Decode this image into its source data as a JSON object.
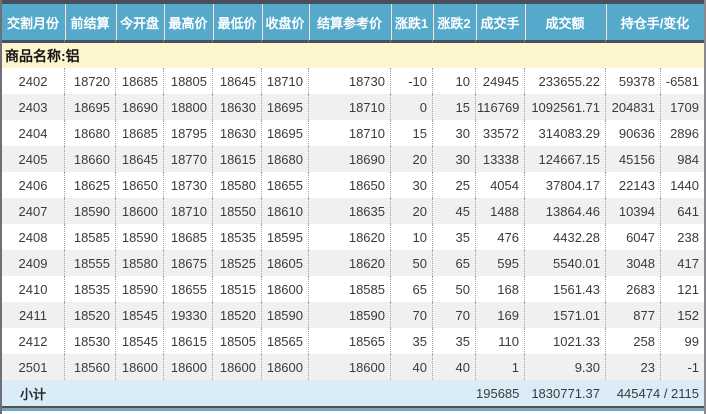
{
  "table": {
    "columns": [
      "交割月份",
      "前结算",
      "今开盘",
      "最高价",
      "最低价",
      "收盘价",
      "结算参考价",
      "涨跌1",
      "涨跌2",
      "成交手",
      "成交额",
      "持仓手/变化"
    ],
    "product_row_label": "商品名称:铝",
    "rows": [
      [
        "2402",
        "18720",
        "18685",
        "18805",
        "18645",
        "18710",
        "18730",
        "-10",
        "10",
        "24945",
        "233655.22",
        "59378",
        "-6581"
      ],
      [
        "2403",
        "18695",
        "18690",
        "18800",
        "18630",
        "18695",
        "18710",
        "0",
        "15",
        "116769",
        "1092561.71",
        "204831",
        "1709"
      ],
      [
        "2404",
        "18680",
        "18685",
        "18795",
        "18630",
        "18695",
        "18710",
        "15",
        "30",
        "33572",
        "314083.29",
        "90636",
        "2896"
      ],
      [
        "2405",
        "18660",
        "18645",
        "18770",
        "18615",
        "18680",
        "18690",
        "20",
        "30",
        "13338",
        "124667.15",
        "45156",
        "984"
      ],
      [
        "2406",
        "18625",
        "18650",
        "18730",
        "18580",
        "18655",
        "18650",
        "30",
        "25",
        "4054",
        "37804.17",
        "22143",
        "1440"
      ],
      [
        "2407",
        "18590",
        "18600",
        "18710",
        "18550",
        "18610",
        "18635",
        "20",
        "45",
        "1488",
        "13864.46",
        "10394",
        "641"
      ],
      [
        "2408",
        "18585",
        "18590",
        "18685",
        "18535",
        "18595",
        "18620",
        "10",
        "35",
        "476",
        "4432.28",
        "6047",
        "238"
      ],
      [
        "2409",
        "18555",
        "18580",
        "18675",
        "18525",
        "18605",
        "18620",
        "50",
        "65",
        "595",
        "5540.01",
        "3048",
        "417"
      ],
      [
        "2410",
        "18535",
        "18590",
        "18655",
        "18515",
        "18600",
        "18585",
        "65",
        "50",
        "168",
        "1561.43",
        "2683",
        "121"
      ],
      [
        "2411",
        "18520",
        "18545",
        "19330",
        "18520",
        "18590",
        "18590",
        "70",
        "70",
        "169",
        "1571.01",
        "877",
        "152"
      ],
      [
        "2412",
        "18530",
        "18545",
        "18615",
        "18505",
        "18565",
        "18565",
        "35",
        "35",
        "110",
        "1021.33",
        "258",
        "99"
      ],
      [
        "2501",
        "18560",
        "18600",
        "18600",
        "18600",
        "18600",
        "18600",
        "40",
        "40",
        "1",
        "9.30",
        "23",
        "-1"
      ]
    ],
    "subtotal": {
      "label": "小计",
      "volume": "195685",
      "turnover": "1830771.37",
      "open_interest_change": "445474 / 2115"
    }
  },
  "colors": {
    "header_bg": "#55aacb",
    "bar_color": "#47505c",
    "product_bg": "#fcf5ce",
    "row_alt": "#f0f0f0",
    "subtotal_bg": "#d9ecf7",
    "bottom_bar": "#6fa8c5"
  }
}
